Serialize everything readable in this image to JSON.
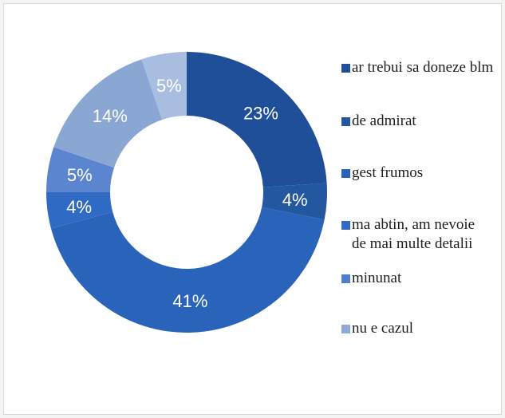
{
  "chart_data": {
    "type": "pie",
    "donut": true,
    "title": "",
    "slices": [
      {
        "label": "ar trebui sa doneze blm",
        "value": 23,
        "display": "23%",
        "color": "#1f4f99"
      },
      {
        "label": "de admirat",
        "value": 4,
        "display": "4%",
        "color": "#23579f"
      },
      {
        "label": "gest frumos",
        "value": 41,
        "display": "41%",
        "color": "#2a63ba"
      },
      {
        "label": "ma abtin, am nevoie de mai multe detalii",
        "value": 4,
        "display": "4%",
        "color": "#2f6ac4"
      },
      {
        "label": "minunat",
        "value": 5,
        "display": "5%",
        "color": "#5b86cf"
      },
      {
        "label": "nu e cazul",
        "value": 14,
        "display": "14%",
        "color": "#8aa6d3"
      },
      {
        "label": "",
        "value": 5,
        "display": "5%",
        "color": "#a9bde0"
      }
    ],
    "legend": {
      "placement": "right",
      "items": [
        {
          "label": "ar trebui sa doneze blm",
          "color": "#1f4f99"
        },
        {
          "label": "de admirat",
          "color": "#23579f"
        },
        {
          "label": "gest frumos",
          "color": "#2a63ba"
        },
        {
          "label": "ma abtin, am nevoie de mai multe detalii",
          "color": "#2f6ac4"
        },
        {
          "label": "minunat",
          "color": "#4d7fcc"
        },
        {
          "label": "nu e cazul",
          "color": "#8fa9d8"
        }
      ]
    }
  }
}
